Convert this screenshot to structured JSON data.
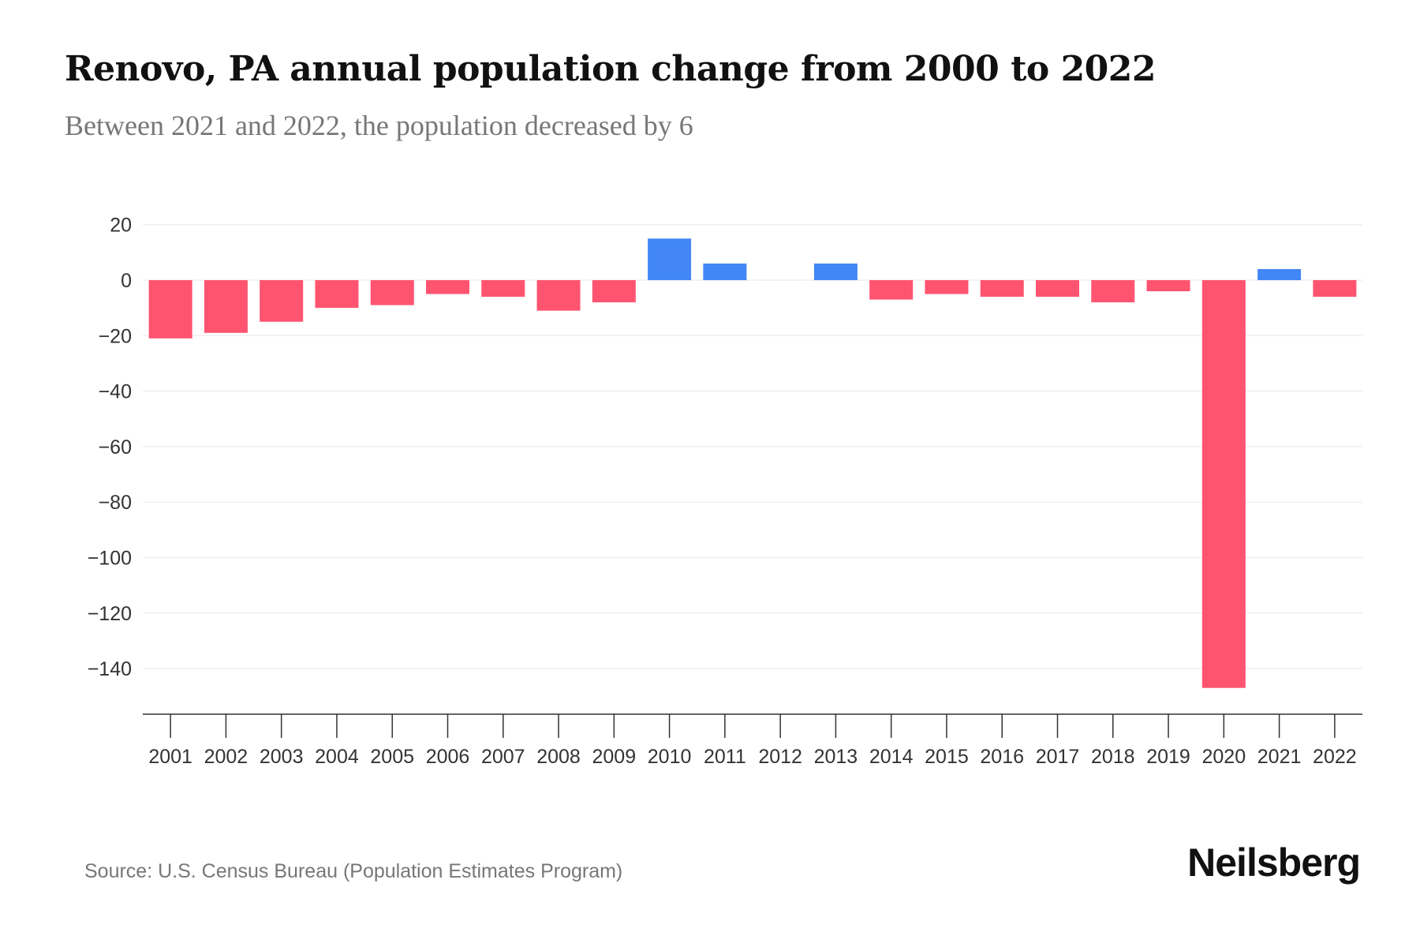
{
  "chart_data": {
    "type": "bar",
    "title": "Renovo, PA annual population change from 2000 to 2022",
    "subtitle": "Between 2021 and 2022, the population decreased by 6",
    "categories": [
      "2001",
      "2002",
      "2003",
      "2004",
      "2005",
      "2006",
      "2007",
      "2008",
      "2009",
      "2010",
      "2011",
      "2012",
      "2013",
      "2014",
      "2015",
      "2016",
      "2017",
      "2018",
      "2019",
      "2020",
      "2021",
      "2022"
    ],
    "values": [
      -21,
      -19,
      -15,
      -10,
      -9,
      -5,
      -6,
      -11,
      -8,
      15,
      6,
      0,
      6,
      -7,
      -5,
      -6,
      -6,
      -8,
      -4,
      -147,
      4,
      -6
    ],
    "yticks": [
      20,
      0,
      -20,
      -40,
      -60,
      -80,
      -100,
      -120,
      -140
    ],
    "ytick_labels": [
      "20",
      "0",
      "−20",
      "−40",
      "−60",
      "−80",
      "−100",
      "−120",
      "−140"
    ],
    "ylim": [
      -155,
      20
    ],
    "xlabel": "",
    "ylabel": "",
    "grid": true,
    "colors": {
      "positive": "#4287f5",
      "negative": "#ff5470"
    }
  },
  "source": "Source: U.S. Census Bureau (Population Estimates Program)",
  "logo": "Neilsberg"
}
